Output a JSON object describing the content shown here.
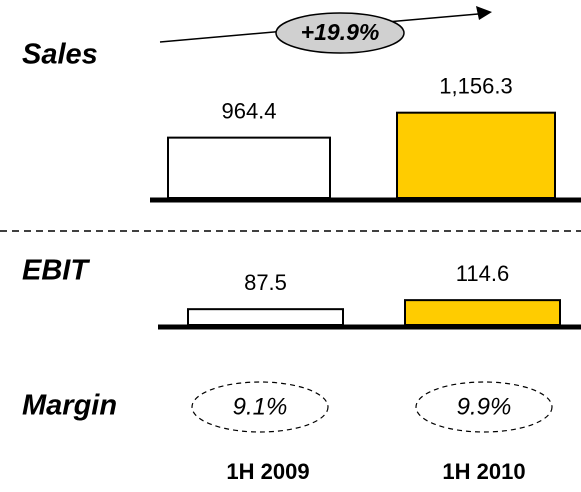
{
  "chart_data": [
    {
      "type": "bar",
      "title": "Sales",
      "annotation": "+19.9%",
      "categories": [
        "1H 2009",
        "1H 2010"
      ],
      "values": [
        964.4,
        1156.3
      ],
      "value_labels": [
        "964.4",
        "1,156.3"
      ],
      "colors": [
        "#ffffff",
        "#ffcc00"
      ],
      "ylim": [
        500,
        1300
      ]
    },
    {
      "type": "bar",
      "title": "EBIT",
      "values": [
        87.5,
        114.6
      ],
      "colors": [
        "#ffffff",
        "#ffcc00"
      ],
      "ylim": [
        40,
        160
      ],
      "margin_title": "Margin",
      "margins": [
        9.1,
        9.9
      ],
      "margin_labels": [
        "9.1%",
        "9.9%"
      ]
    }
  ]
}
